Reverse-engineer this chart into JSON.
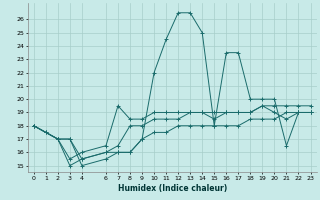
{
  "xlabel": "Humidex (Indice chaleur)",
  "background_color": "#c8eae8",
  "grid_color": "#a8ceca",
  "line_color": "#1a6b6b",
  "xlim": [
    -0.5,
    23.5
  ],
  "ylim": [
    14.5,
    27.2
  ],
  "xticks": [
    0,
    1,
    2,
    3,
    4,
    6,
    7,
    8,
    9,
    10,
    11,
    12,
    13,
    14,
    15,
    16,
    17,
    18,
    19,
    20,
    21,
    22,
    23
  ],
  "yticks": [
    15,
    16,
    17,
    18,
    19,
    20,
    21,
    22,
    23,
    24,
    25,
    26
  ],
  "lines": [
    {
      "x": [
        0,
        1,
        2,
        3,
        4,
        6,
        7,
        8,
        9,
        10,
        11,
        12,
        13,
        14,
        15,
        16,
        17,
        18,
        19,
        20,
        21,
        22,
        23
      ],
      "y": [
        18,
        17.5,
        17,
        15,
        15.5,
        16,
        16,
        16,
        17,
        22,
        24.5,
        26.5,
        26.5,
        25,
        18,
        23.5,
        23.5,
        20,
        20,
        20,
        16.5,
        19,
        19
      ]
    },
    {
      "x": [
        0,
        1,
        2,
        3,
        4,
        6,
        7,
        8,
        9,
        10,
        11,
        12,
        13,
        14,
        15,
        16,
        17,
        18,
        19,
        20,
        21,
        22,
        23
      ],
      "y": [
        18,
        17.5,
        17,
        15.5,
        16,
        16.5,
        19.5,
        18.5,
        18.5,
        19,
        19,
        19,
        19,
        19,
        18.5,
        19,
        19,
        19,
        19.5,
        19,
        18.5,
        19,
        19
      ]
    },
    {
      "x": [
        0,
        2,
        3,
        4,
        6,
        7,
        8,
        9,
        10,
        11,
        12,
        13,
        14,
        15,
        16,
        17,
        18,
        19,
        20,
        21,
        22,
        23
      ],
      "y": [
        18,
        17,
        17,
        15.5,
        16,
        16.5,
        18,
        18,
        18.5,
        18.5,
        18.5,
        19,
        19,
        19,
        19,
        19,
        19,
        19.5,
        19.5,
        19.5,
        19.5,
        19.5
      ]
    },
    {
      "x": [
        0,
        2,
        3,
        4,
        6,
        7,
        8,
        9,
        10,
        11,
        12,
        13,
        14,
        15,
        16,
        17,
        18,
        19,
        20,
        21,
        22,
        23
      ],
      "y": [
        18,
        17,
        17,
        15,
        15.5,
        16,
        16,
        17,
        17.5,
        17.5,
        18,
        18,
        18,
        18,
        18,
        18,
        18.5,
        18.5,
        18.5,
        19,
        19,
        19
      ]
    }
  ]
}
